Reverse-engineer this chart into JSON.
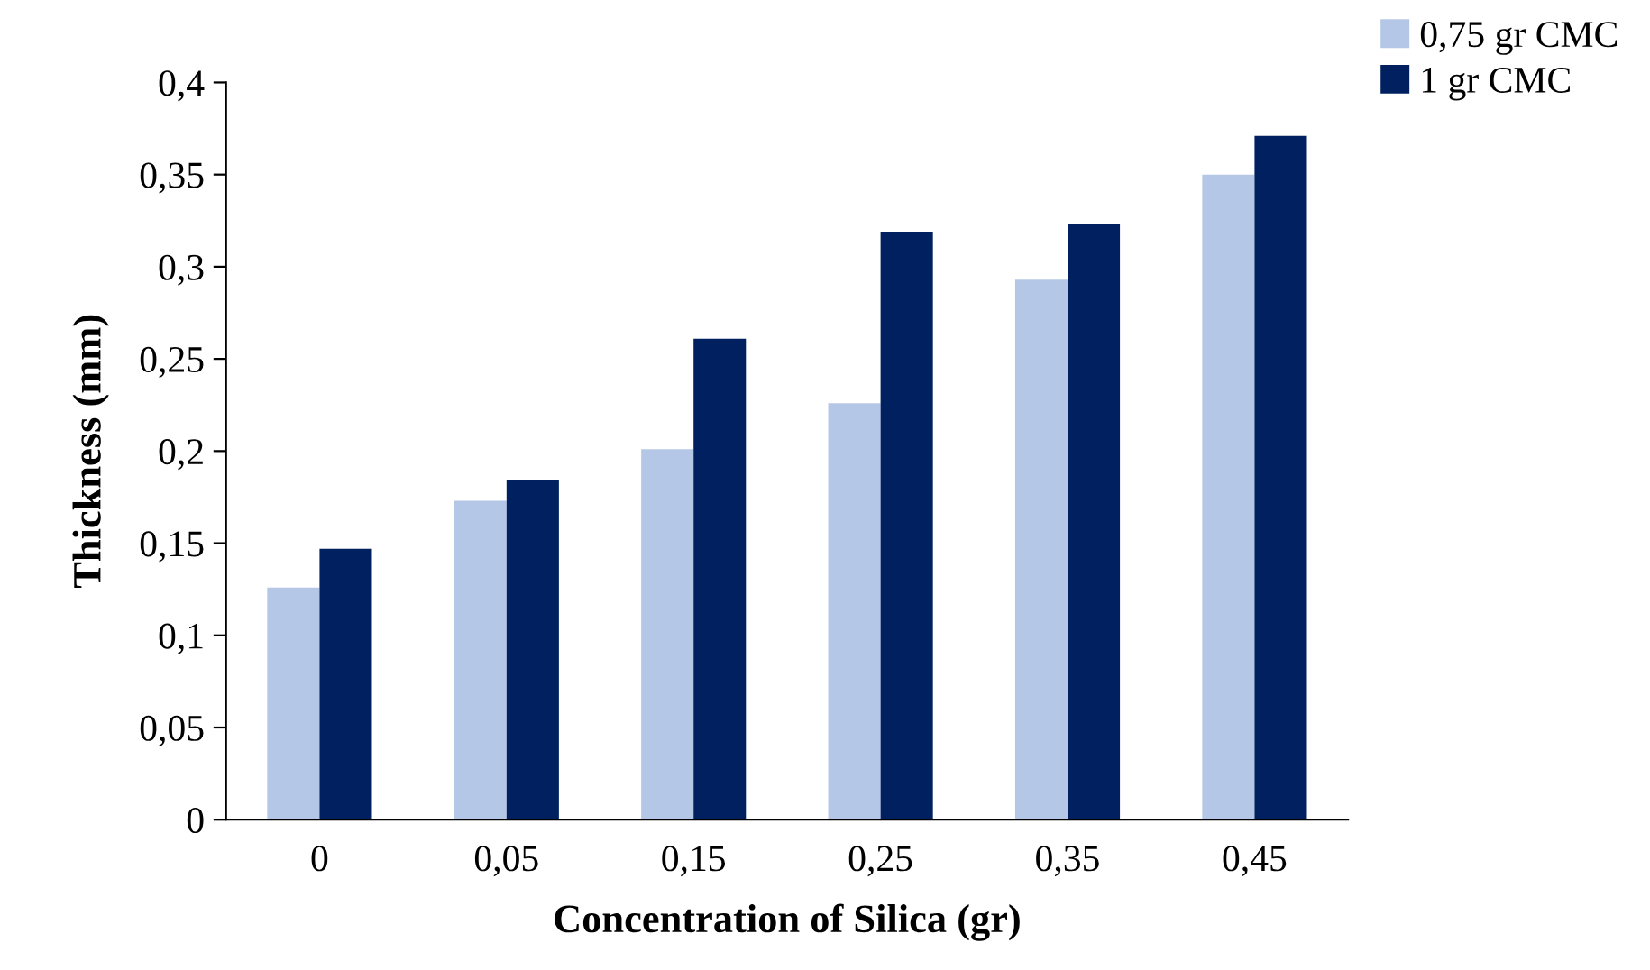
{
  "chart_data": {
    "type": "bar",
    "xlabel": "Concentration of Silica (gr)",
    "ylabel": "Thickness (mm)",
    "categories": [
      "0",
      "0,05",
      "0,15",
      "0,25",
      "0,35",
      "0,45"
    ],
    "series": [
      {
        "name": "0,75 gr CMC",
        "color": "#b4c7e7",
        "values": [
          0.126,
          0.173,
          0.201,
          0.226,
          0.293,
          0.35
        ]
      },
      {
        "name": "1 gr CMC",
        "color": "#002060",
        "values": [
          0.147,
          0.184,
          0.261,
          0.319,
          0.323,
          0.371
        ]
      }
    ],
    "ylim": [
      0,
      0.4
    ],
    "yticks": [
      {
        "value": 0,
        "label": "0"
      },
      {
        "value": 0.05,
        "label": "0,05"
      },
      {
        "value": 0.1,
        "label": "0,1"
      },
      {
        "value": 0.15,
        "label": "0,15"
      },
      {
        "value": 0.2,
        "label": "0,2"
      },
      {
        "value": 0.25,
        "label": "0,25"
      },
      {
        "value": 0.3,
        "label": "0,3"
      },
      {
        "value": 0.35,
        "label": "0,35"
      },
      {
        "value": 0.4,
        "label": "0,4"
      }
    ],
    "grid": false,
    "legend": "top right"
  }
}
